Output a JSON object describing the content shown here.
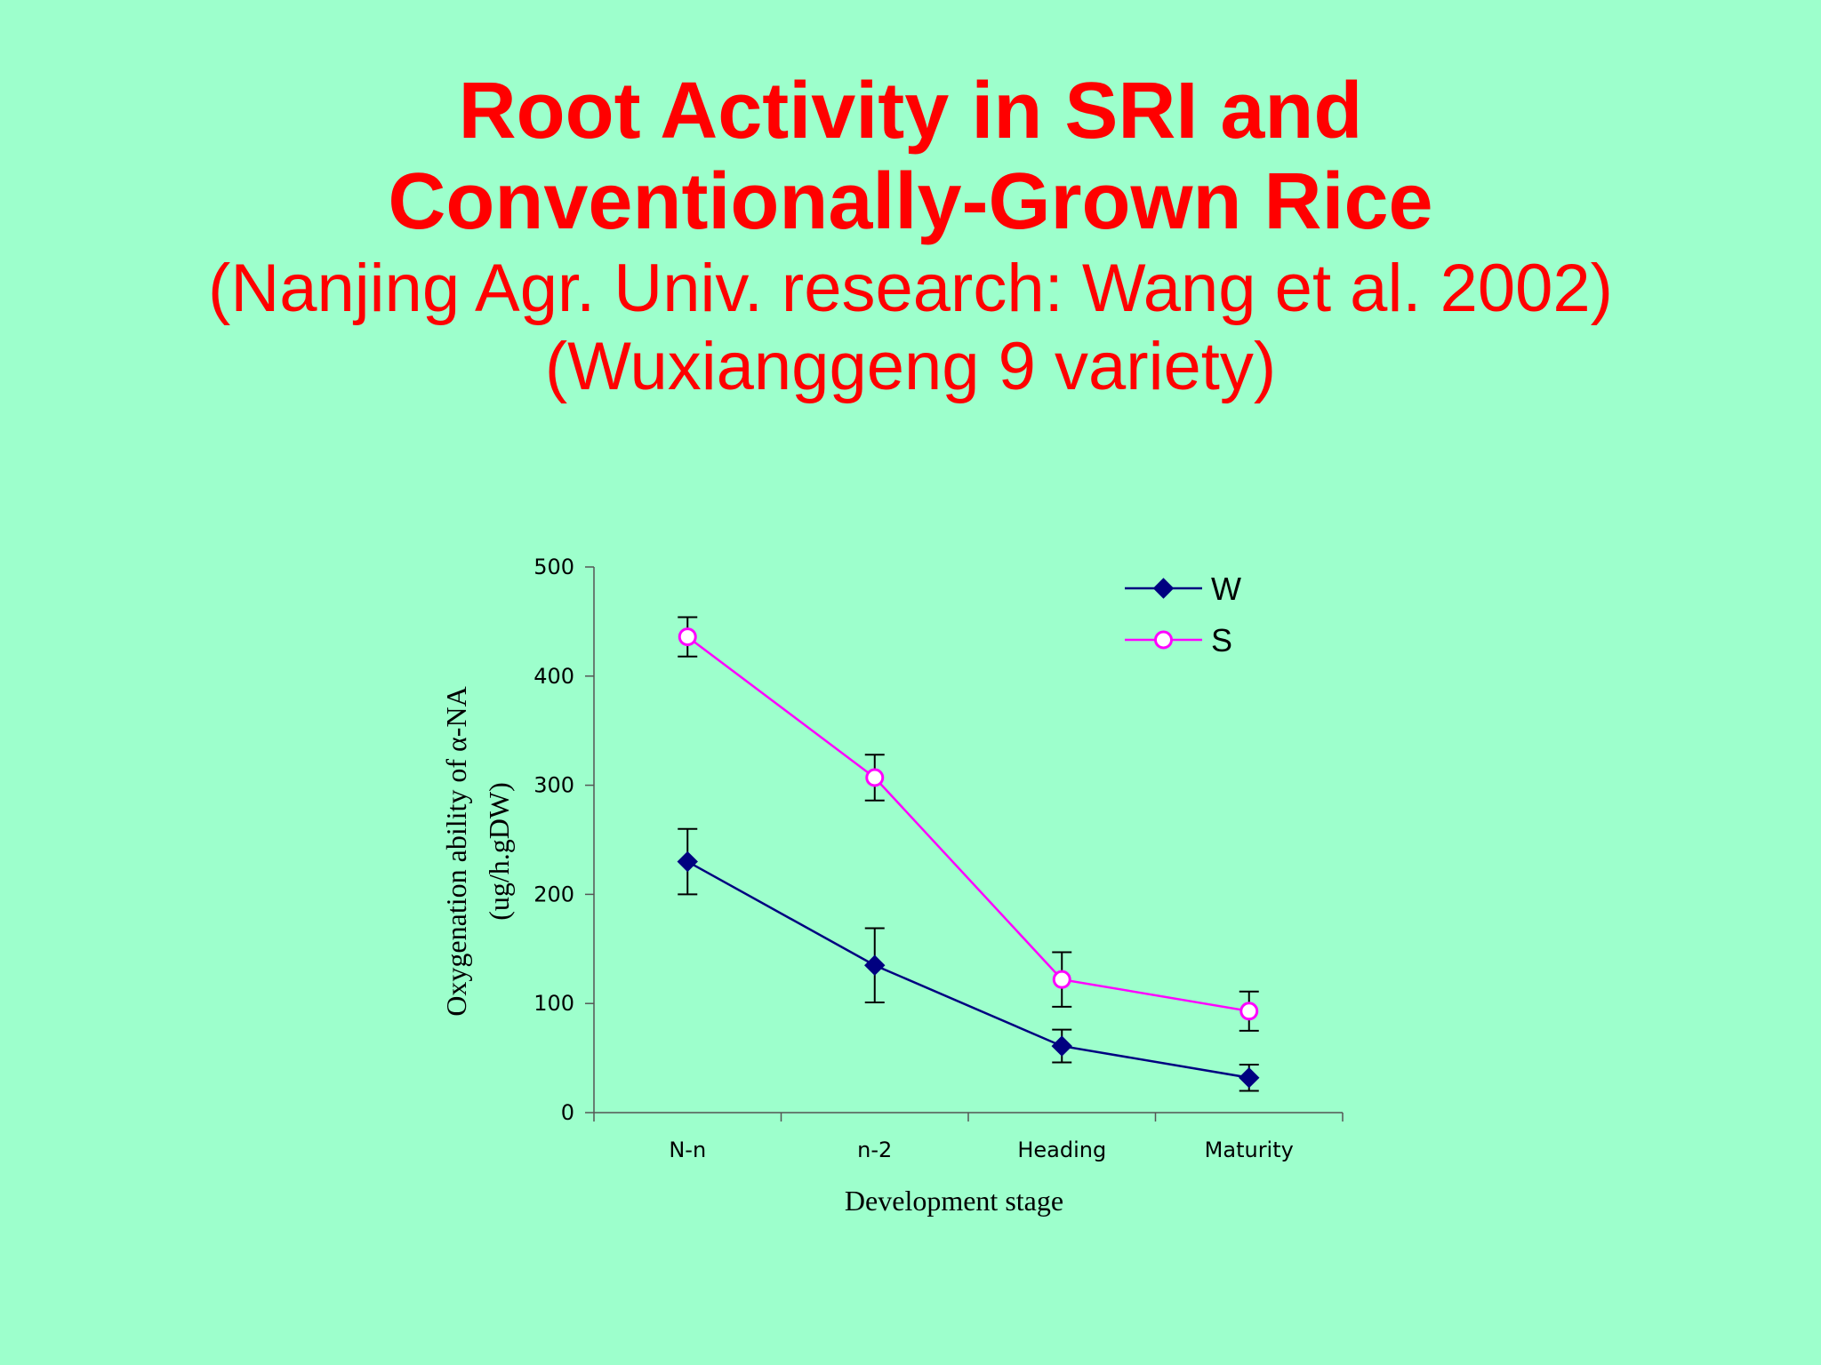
{
  "slide": {
    "title_line1": "Root Activity in SRI and",
    "title_line2": "Conventionally-Grown Rice",
    "subtitle_line1": "(Nanjing Agr. Univ. research: Wang et al. 2002)",
    "subtitle_line2": "(Wuxianggeng 9 variety)"
  },
  "colors": {
    "background": "#9dffcc",
    "title": "#ff0000",
    "series_w": "#000080",
    "series_s": "#ff00ff"
  },
  "chart_data": {
    "type": "line",
    "xlabel": "Development stage",
    "ylabel_line1": "Oxygenation ability of α-NA",
    "ylabel_line2": "(ug/h.gDW)",
    "ylim": [
      0,
      500
    ],
    "yticks": [
      0,
      100,
      200,
      300,
      400,
      500
    ],
    "categories": [
      "N-n",
      "n-2",
      "Heading",
      "Maturity"
    ],
    "legend_position": "top-right",
    "series": [
      {
        "name": "W",
        "marker": "filled-diamond",
        "color": "#000080",
        "values": [
          230,
          135,
          61,
          32
        ],
        "error": [
          30,
          34,
          15,
          12
        ]
      },
      {
        "name": "S",
        "marker": "open-circle",
        "color": "#ff00ff",
        "values": [
          436,
          307,
          122,
          93
        ],
        "error": [
          18,
          21,
          25,
          18
        ]
      }
    ]
  }
}
